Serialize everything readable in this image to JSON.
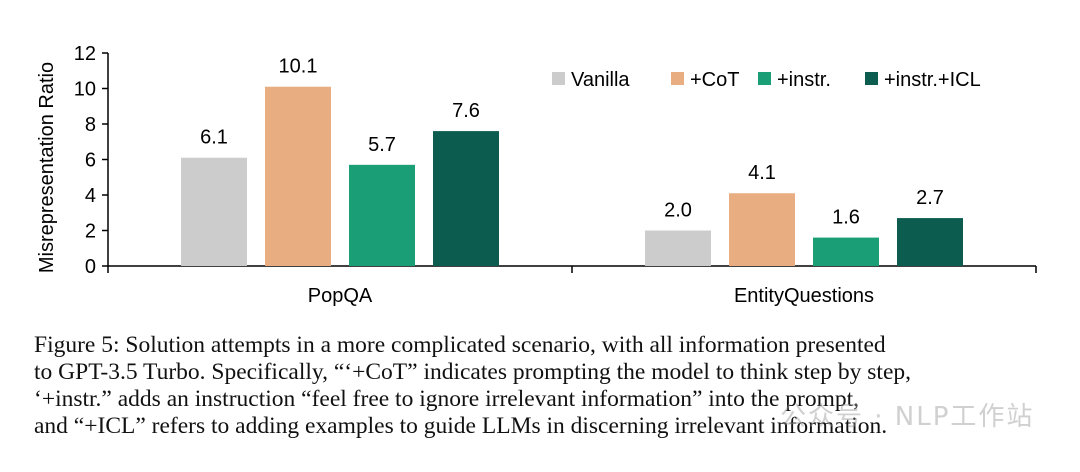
{
  "chart_data": {
    "type": "bar",
    "categories": [
      "PopQA",
      "EntityQuestions"
    ],
    "series": [
      {
        "name": "Vanilla",
        "color": "#cccccc",
        "values": [
          6.1,
          2.0
        ]
      },
      {
        "name": "+CoT",
        "color": "#e8ae82",
        "values": [
          10.1,
          4.1
        ]
      },
      {
        "name": "+instr.",
        "color": "#1a9e76",
        "values": [
          5.7,
          1.6
        ]
      },
      {
        "name": "+instr.+ICL",
        "color": "#0c5c50",
        "values": [
          7.6,
          2.7
        ]
      }
    ],
    "ylabel": "Misrepresentation Ratio",
    "xlabel": "",
    "ylim": [
      0,
      12
    ],
    "yticks": [
      "0",
      "2",
      "4",
      "6",
      "8",
      "10",
      "12"
    ],
    "value_labels": [
      [
        "6.1",
        "2.0"
      ],
      [
        "10.1",
        "4.1"
      ],
      [
        "5.7",
        "1.6"
      ],
      [
        "7.6",
        "2.7"
      ]
    ],
    "legend_position": "top-right",
    "grid": false
  },
  "caption": {
    "lines": [
      "Figure 5: Solution attempts in a more complicated scenario, with all information presented",
      "to GPT-3.5 Turbo. Specifically, “‘+CoT” indicates prompting the model to think step by step,",
      "‘+instr.” adds an instruction “feel free to ignore irrelevant information” into the prompt,",
      "and “+ICL” refers to adding examples to guide LLMs in discerning irrelevant information."
    ]
  },
  "watermark": "公众号 · NLP工作站"
}
